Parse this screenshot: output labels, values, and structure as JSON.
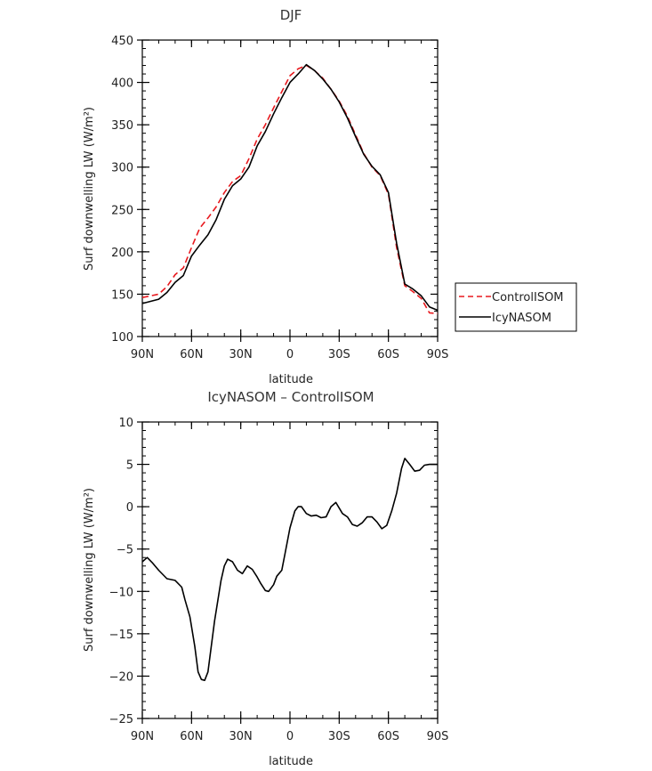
{
  "chart_data": [
    {
      "type": "line",
      "title": "DJF",
      "xlabel": "latitude",
      "ylabel": "Surf downwelling LW (W/m²)",
      "xlim": [
        90,
        -90
      ],
      "ylim": [
        100,
        450
      ],
      "xticks": [
        90,
        60,
        30,
        0,
        -30,
        -60,
        -90
      ],
      "xtick_labels": [
        "90N",
        "60N",
        "30N",
        "0",
        "30S",
        "60S",
        "90S"
      ],
      "yticks": [
        100,
        150,
        200,
        250,
        300,
        350,
        400,
        450
      ],
      "ytick_labels": [
        "100",
        "150",
        "200",
        "250",
        "300",
        "350",
        "400",
        "450"
      ],
      "legend_position": "right-outside",
      "series": [
        {
          "name": "ControlISOM",
          "color": "#e8191e",
          "dash": "dashed",
          "x": [
            90,
            80,
            75,
            70,
            65,
            60,
            55,
            50,
            45,
            40,
            35,
            30,
            25,
            20,
            15,
            10,
            5,
            0,
            -5,
            -10,
            -15,
            -20,
            -25,
            -30,
            -35,
            -40,
            -45,
            -50,
            -55,
            -60,
            -65,
            -70,
            -75,
            -80,
            -85,
            -90
          ],
          "y": [
            146,
            150,
            159,
            173,
            181,
            205,
            228,
            240,
            253,
            270,
            283,
            290,
            310,
            333,
            350,
            370,
            389,
            408,
            416,
            420,
            414,
            405,
            392,
            378,
            360,
            338,
            316,
            300,
            290,
            268,
            205,
            160,
            153,
            145,
            128,
            127
          ]
        },
        {
          "name": "IcyNASOM",
          "color": "#000000",
          "dash": "solid",
          "x": [
            90,
            80,
            75,
            70,
            65,
            60,
            55,
            50,
            45,
            40,
            35,
            30,
            25,
            20,
            15,
            10,
            5,
            0,
            -5,
            -10,
            -15,
            -20,
            -25,
            -30,
            -35,
            -40,
            -45,
            -50,
            -55,
            -60,
            -65,
            -70,
            -75,
            -80,
            -85,
            -90
          ],
          "y": [
            139,
            144,
            152,
            164,
            172,
            195,
            208,
            220,
            238,
            262,
            278,
            286,
            300,
            325,
            342,
            363,
            382,
            400,
            410,
            421,
            414,
            404,
            392,
            377,
            358,
            336,
            315,
            301,
            291,
            270,
            210,
            162,
            156,
            148,
            135,
            131
          ]
        }
      ]
    },
    {
      "type": "line",
      "title": "IcyNASOM – ControlISOM",
      "xlabel": "latitude",
      "ylabel": "Surf downwelling LW (W/m²)",
      "xlim": [
        90,
        -90
      ],
      "ylim": [
        -25,
        10
      ],
      "xticks": [
        90,
        60,
        30,
        0,
        -30,
        -60,
        -90
      ],
      "xtick_labels": [
        "90N",
        "60N",
        "30N",
        "0",
        "30S",
        "60S",
        "90S"
      ],
      "yticks": [
        -25,
        -20,
        -15,
        -10,
        -5,
        0,
        5,
        10
      ],
      "ytick_labels": [
        "−25",
        "−20",
        "−15",
        "−10",
        "−5",
        "0",
        "5",
        "10"
      ],
      "series": [
        {
          "color": "#000000",
          "x": [
            90,
            87,
            84,
            80,
            75,
            70,
            66,
            64,
            61,
            58,
            56,
            54,
            52,
            50,
            46,
            42,
            40,
            38,
            35,
            32,
            29,
            26,
            23,
            20,
            18,
            15,
            13,
            10,
            8,
            5,
            3,
            0,
            -3,
            -5,
            -7,
            -10,
            -13,
            -16,
            -19,
            -22,
            -25,
            -28,
            -32,
            -35,
            -38,
            -41,
            -44,
            -47,
            -50,
            -53,
            -56,
            -59,
            -62,
            -65,
            -68,
            -70,
            -73,
            -76,
            -79,
            -82,
            -85,
            -88,
            -90
          ],
          "y": [
            -6.5,
            -6.0,
            -6.6,
            -7.5,
            -8.5,
            -8.7,
            -9.5,
            -11.0,
            -13.0,
            -16.5,
            -19.5,
            -20.4,
            -20.5,
            -19.5,
            -13.5,
            -8.7,
            -7.0,
            -6.2,
            -6.5,
            -7.5,
            -7.9,
            -7.0,
            -7.4,
            -8.3,
            -9.0,
            -9.9,
            -10.0,
            -9.2,
            -8.2,
            -7.5,
            -5.5,
            -2.5,
            -0.5,
            0.0,
            0.0,
            -0.8,
            -1.1,
            -1.0,
            -1.3,
            -1.2,
            0.0,
            0.5,
            -0.8,
            -1.2,
            -2.1,
            -2.3,
            -1.9,
            -1.2,
            -1.2,
            -1.8,
            -2.6,
            -2.2,
            -0.5,
            1.6,
            4.5,
            5.7,
            5.0,
            4.2,
            4.3,
            4.9,
            5.0,
            5.0,
            5.0
          ]
        }
      ]
    }
  ]
}
